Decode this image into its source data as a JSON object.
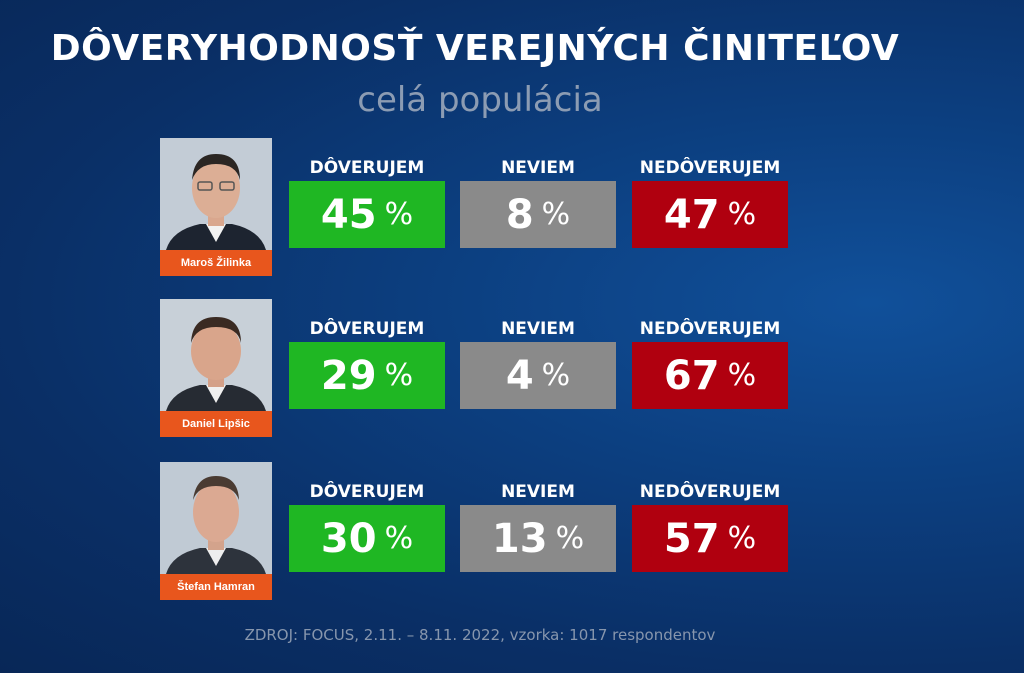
{
  "header": {
    "title": "DÔVERYHODNOSŤ VEREJNÝCH ČINITEĽOV",
    "subtitle": "celá populácia"
  },
  "colors": {
    "trust": "#1fb723",
    "unknown": "#8a8a8a",
    "distrust": "#b0000f",
    "name_badge": "#e8561d",
    "background": "#0c3f80"
  },
  "chart_data": {
    "type": "table",
    "title": "DÔVERYHODNOSŤ VEREJNÝCH ČINITEĽOV",
    "subtitle": "celá populácia",
    "columns": [
      "DÔVERUJEM",
      "NEVIEM",
      "NEDÔVERUJEM"
    ],
    "unit": "%",
    "rows": [
      {
        "name": "Maroš Žilinka",
        "values": [
          45,
          8,
          47
        ]
      },
      {
        "name": "Daniel Lipšic",
        "values": [
          29,
          4,
          67
        ]
      },
      {
        "name": "Štefan Hamran",
        "values": [
          30,
          13,
          57
        ]
      }
    ]
  },
  "footer": {
    "source": "ZDROJ: FOCUS, 2.11. – 8.11. 2022, vzorka: 1017 respondentov"
  }
}
